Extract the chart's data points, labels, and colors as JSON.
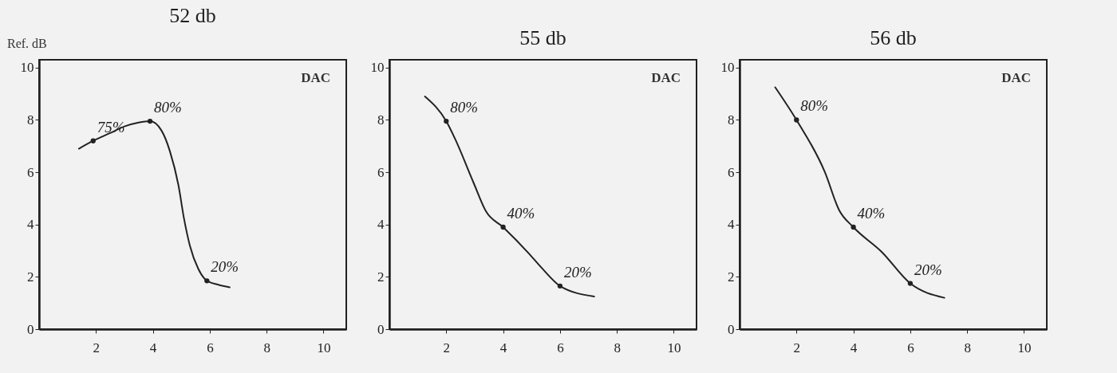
{
  "chart_data": [
    {
      "type": "line",
      "title": "52 db",
      "xlim": [
        0,
        10.8
      ],
      "ylim": [
        0,
        10.3
      ],
      "xticks": [
        2,
        4,
        6,
        8,
        10
      ],
      "yticks": [
        0,
        2,
        4,
        6,
        8,
        10
      ],
      "grid": false,
      "line_style": "solid",
      "marker": "none",
      "annotations": [
        "Ref. dB",
        "DAC",
        {
          "text": "75%",
          "x": 1.9,
          "y": 7.2
        },
        {
          "text": "80%",
          "x": 3.9,
          "y": 7.95
        },
        {
          "text": "20%",
          "x": 5.9,
          "y": 1.85
        }
      ],
      "series": [
        {
          "color": "#222222",
          "x": [
            1.4,
            1.9,
            2.5,
            3.0,
            3.5,
            3.9,
            4.3,
            4.6,
            4.9,
            5.1,
            5.3,
            5.6,
            5.9,
            6.3,
            6.7
          ],
          "values": [
            6.9,
            7.2,
            7.5,
            7.75,
            7.9,
            7.95,
            7.6,
            6.8,
            5.5,
            4.2,
            3.2,
            2.3,
            1.85,
            1.7,
            1.6
          ]
        },
        {
          "type": "scatter",
          "color": "#222222",
          "marker": "circle",
          "x": [
            1.9,
            3.9,
            5.9
          ],
          "values": [
            7.2,
            7.95,
            1.85
          ]
        }
      ]
    },
    {
      "type": "line",
      "title": "55 db",
      "xlim": [
        0,
        10.8
      ],
      "ylim": [
        0,
        10.3
      ],
      "xticks": [
        2,
        4,
        6,
        8,
        10
      ],
      "yticks": [
        0,
        2,
        4,
        6,
        8,
        10
      ],
      "grid": false,
      "line_style": "solid",
      "marker": "none",
      "annotations": [
        "DAC",
        {
          "text": "80%",
          "x": 2.0,
          "y": 7.95
        },
        {
          "text": "40%",
          "x": 4.0,
          "y": 3.9
        },
        {
          "text": "20%",
          "x": 6.0,
          "y": 1.65
        }
      ],
      "series": [
        {
          "color": "#222222",
          "x": [
            1.25,
            2.0,
            2.3,
            2.96,
            3.4,
            4.0,
            4.9,
            5.35,
            6.0,
            7.2
          ],
          "values": [
            8.9,
            7.95,
            7.3,
            5.6,
            4.5,
            3.9,
            2.9,
            2.35,
            1.65,
            1.25
          ]
        },
        {
          "type": "scatter",
          "color": "#222222",
          "marker": "circle",
          "x": [
            2.0,
            4.0,
            6.0
          ],
          "values": [
            7.95,
            3.9,
            1.65
          ]
        }
      ]
    },
    {
      "type": "line",
      "title": "56 db",
      "xlim": [
        0,
        10.8
      ],
      "ylim": [
        0,
        10.3
      ],
      "xticks": [
        2,
        4,
        6,
        8,
        10
      ],
      "yticks": [
        0,
        2,
        4,
        6,
        8,
        10
      ],
      "grid": false,
      "line_style": "solid",
      "marker": "none",
      "annotations": [
        "DAC",
        {
          "text": "80%",
          "x": 2.0,
          "y": 8.0
        },
        {
          "text": "40%",
          "x": 4.0,
          "y": 3.9
        },
        {
          "text": "20%",
          "x": 6.0,
          "y": 1.75
        }
      ],
      "series": [
        {
          "color": "#222222",
          "x": [
            1.25,
            2.0,
            3.0,
            3.5,
            4.0,
            5.0,
            6.0,
            7.2
          ],
          "values": [
            9.25,
            8.0,
            6.0,
            4.55,
            3.9,
            2.95,
            1.75,
            1.2
          ]
        },
        {
          "type": "scatter",
          "color": "#222222",
          "marker": "circle",
          "x": [
            2.0,
            4.0,
            6.0
          ],
          "values": [
            8.0,
            3.9,
            1.75
          ]
        }
      ]
    }
  ]
}
